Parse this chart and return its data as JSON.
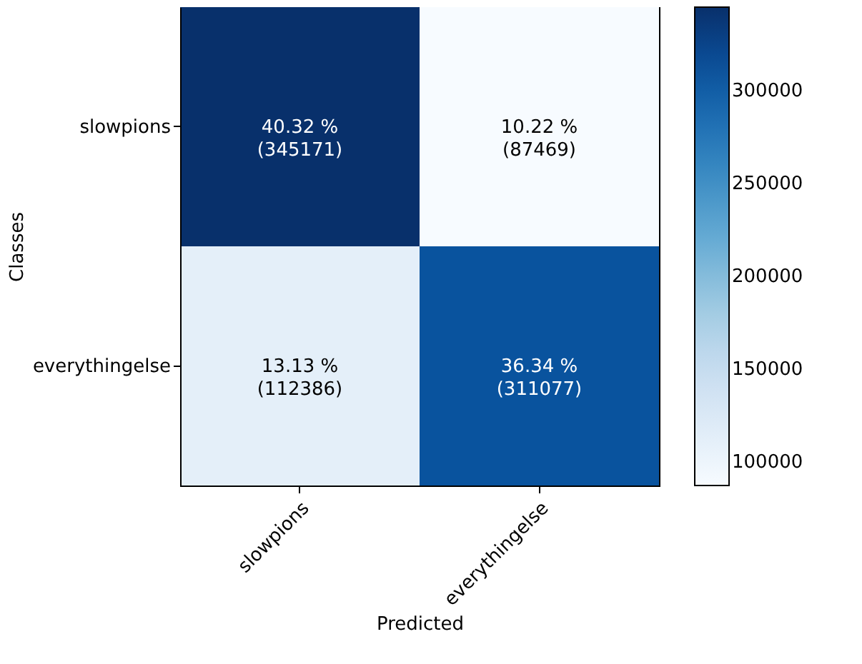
{
  "chart_data": {
    "type": "heatmap",
    "xlabel": "Predicted",
    "ylabel": "Classes",
    "categories": [
      "slowpions",
      "everythingelse"
    ],
    "y_categories": [
      "slowpions",
      "everythingelse"
    ],
    "cells": [
      [
        345171,
        87469
      ],
      [
        112386,
        311077
      ]
    ],
    "cell_labels": [
      [
        "40.32 %\n(345171)",
        "10.22 %\n(87469)"
      ],
      [
        "13.13 %\n(112386)",
        "36.34 %\n(311077)"
      ]
    ],
    "clim": [
      87469,
      345171
    ],
    "cticks": [
      100000,
      150000,
      200000,
      250000,
      300000
    ]
  }
}
